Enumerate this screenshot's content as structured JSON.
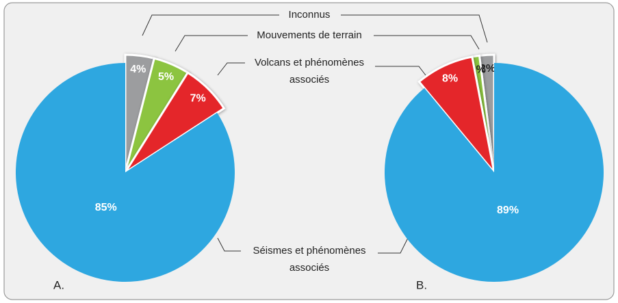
{
  "chart_data": [
    {
      "type": "pie",
      "label": "A.",
      "categories": [
        "Séismes et phénomènes associés",
        "Volcans et phénomènes associés",
        "Mouvements de terrain",
        "Inconnus"
      ],
      "values": [
        85,
        7,
        5,
        4
      ],
      "value_labels": [
        "85%",
        "7%",
        "5%",
        "4%"
      ],
      "colors": [
        "#2ea7e0",
        "#e4262b",
        "#8cc43f",
        "#9c9d9f"
      ]
    },
    {
      "type": "pie",
      "label": "B.",
      "values": [
        89,
        8,
        1,
        2
      ],
      "value_labels": [
        "89%",
        "8%",
        "1%",
        "2%"
      ],
      "colors": [
        "#2ea7e0",
        "#e4262b",
        "#8cc43f",
        "#9c9d9f"
      ]
    }
  ]
}
